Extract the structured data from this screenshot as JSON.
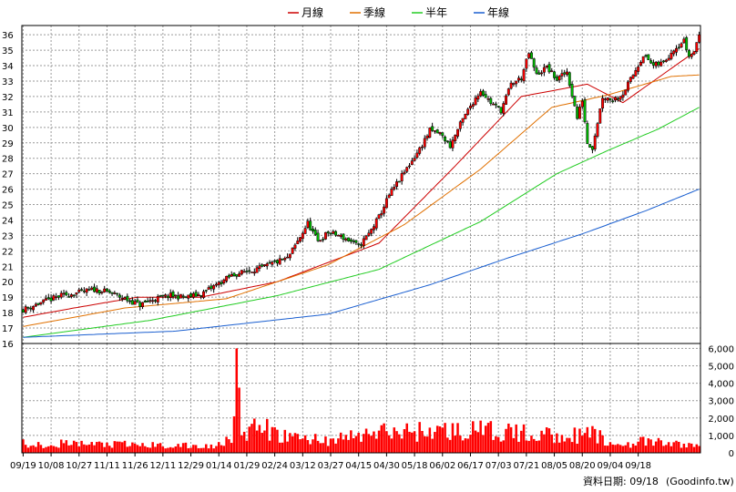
{
  "chart_data": [
    {
      "type": "candlestick",
      "panel": "price",
      "ylim": [
        16,
        36.6
      ],
      "y_ticks": [
        "16",
        "17",
        "18",
        "19",
        "20",
        "21",
        "22",
        "23",
        "24",
        "25",
        "26",
        "27",
        "28",
        "29",
        "30",
        "31",
        "32",
        "33",
        "34",
        "35",
        "36"
      ],
      "grid": true,
      "legend_position": "top-center",
      "legend": [
        {
          "name": "月線",
          "color": "#cc0000"
        },
        {
          "name": "季線",
          "color": "#e07000"
        },
        {
          "name": "半年",
          "color": "#22cc22"
        },
        {
          "name": "年線",
          "color": "#1a5fd0"
        }
      ],
      "close_anchors": [
        [
          0,
          18.2
        ],
        [
          8,
          18.7
        ],
        [
          15,
          19.1
        ],
        [
          22,
          19.3
        ],
        [
          28,
          19.5
        ],
        [
          34,
          19.3
        ],
        [
          40,
          18.9
        ],
        [
          46,
          18.5
        ],
        [
          52,
          18.9
        ],
        [
          58,
          19.1
        ],
        [
          64,
          19.0
        ],
        [
          70,
          19.2
        ],
        [
          76,
          19.8
        ],
        [
          82,
          20.4
        ],
        [
          88,
          20.7
        ],
        [
          94,
          20.9
        ],
        [
          100,
          21.3
        ],
        [
          104,
          21.5
        ],
        [
          108,
          22.6
        ],
        [
          112,
          23.8
        ],
        [
          116,
          22.6
        ],
        [
          120,
          23.2
        ],
        [
          124,
          23.0
        ],
        [
          128,
          22.7
        ],
        [
          132,
          22.3
        ],
        [
          136,
          23.1
        ],
        [
          140,
          24.2
        ],
        [
          144,
          25.6
        ],
        [
          148,
          26.6
        ],
        [
          152,
          27.6
        ],
        [
          156,
          28.6
        ],
        [
          160,
          29.8
        ],
        [
          164,
          29.6
        ],
        [
          168,
          28.8
        ],
        [
          172,
          30.2
        ],
        [
          176,
          31.4
        ],
        [
          180,
          32.4
        ],
        [
          184,
          31.6
        ],
        [
          188,
          31.1
        ],
        [
          192,
          32.8
        ],
        [
          196,
          33.2
        ],
        [
          199,
          34.8
        ],
        [
          202,
          33.4
        ],
        [
          206,
          33.9
        ],
        [
          210,
          33.1
        ],
        [
          214,
          33.6
        ],
        [
          218,
          30.6
        ],
        [
          220,
          31.8
        ],
        [
          222,
          29.0
        ],
        [
          224,
          28.7
        ],
        [
          228,
          32.0
        ],
        [
          232,
          31.8
        ],
        [
          236,
          32.2
        ],
        [
          240,
          33.4
        ],
        [
          244,
          34.7
        ],
        [
          248,
          34.0
        ],
        [
          252,
          34.2
        ],
        [
          256,
          35.1
        ],
        [
          260,
          35.6
        ],
        [
          262,
          34.6
        ],
        [
          264,
          34.9
        ],
        [
          266,
          36.1
        ]
      ],
      "ma_lines": {
        "月線": [
          [
            0,
            17.7
          ],
          [
            20,
            18.3
          ],
          [
            45,
            19.0
          ],
          [
            70,
            19.0
          ],
          [
            100,
            20.0
          ],
          [
            140,
            22.5
          ],
          [
            170,
            27.5
          ],
          [
            196,
            32.0
          ],
          [
            222,
            32.8
          ],
          [
            236,
            31.6
          ],
          [
            266,
            35.1
          ]
        ],
        "季線": [
          [
            0,
            17.1
          ],
          [
            40,
            18.3
          ],
          [
            80,
            18.9
          ],
          [
            120,
            21.1
          ],
          [
            150,
            23.7
          ],
          [
            180,
            27.3
          ],
          [
            208,
            31.3
          ],
          [
            230,
            32.1
          ],
          [
            255,
            33.3
          ],
          [
            266,
            33.4
          ]
        ],
        "半年": [
          [
            0,
            16.4
          ],
          [
            50,
            17.5
          ],
          [
            100,
            19.1
          ],
          [
            140,
            20.8
          ],
          [
            180,
            23.9
          ],
          [
            210,
            27.0
          ],
          [
            230,
            28.5
          ],
          [
            250,
            29.9
          ],
          [
            266,
            31.3
          ]
        ],
        "年線": [
          [
            0,
            16.4
          ],
          [
            60,
            16.8
          ],
          [
            120,
            17.9
          ],
          [
            160,
            19.8
          ],
          [
            190,
            21.5
          ],
          [
            220,
            23.1
          ],
          [
            245,
            24.6
          ],
          [
            266,
            26.0
          ]
        ]
      }
    },
    {
      "type": "bar",
      "panel": "volume",
      "ylim": [
        0,
        6000
      ],
      "y_ticks": [
        "0",
        "1,000",
        "2,000",
        "3,000",
        "4,000",
        "5,000",
        "6,000"
      ],
      "color": "#ff0000",
      "volume_anchors": [
        [
          0,
          600
        ],
        [
          30,
          550
        ],
        [
          60,
          450
        ],
        [
          75,
          400
        ],
        [
          80,
          900
        ],
        [
          82,
          1200
        ],
        [
          84,
          6000
        ],
        [
          86,
          1200
        ],
        [
          88,
          900
        ],
        [
          92,
          1800
        ],
        [
          100,
          1100
        ],
        [
          120,
          800
        ],
        [
          140,
          1300
        ],
        [
          160,
          1400
        ],
        [
          180,
          1400
        ],
        [
          200,
          1200
        ],
        [
          220,
          1100
        ],
        [
          226,
          1200
        ],
        [
          230,
          500
        ],
        [
          245,
          700
        ],
        [
          266,
          450
        ]
      ]
    }
  ],
  "x_ticks": [
    "09/19",
    "10/08",
    "10/27",
    "11/11",
    "11/26",
    "12/11",
    "12/29",
    "01/14",
    "01/29",
    "02/24",
    "03/12",
    "03/27",
    "04/15",
    "04/30",
    "05/18",
    "06/02",
    "06/17",
    "07/03",
    "07/21",
    "08/05",
    "08/20",
    "09/04",
    "09/18"
  ],
  "x_tick_index": [
    0,
    11,
    22,
    33,
    44,
    55,
    66,
    77,
    88,
    99,
    110,
    121,
    132,
    143,
    154,
    165,
    176,
    187,
    198,
    209,
    220,
    231,
    242
  ],
  "footer": {
    "label": "資料日期: 09/18",
    "source": "(Goodinfo.tw)"
  }
}
